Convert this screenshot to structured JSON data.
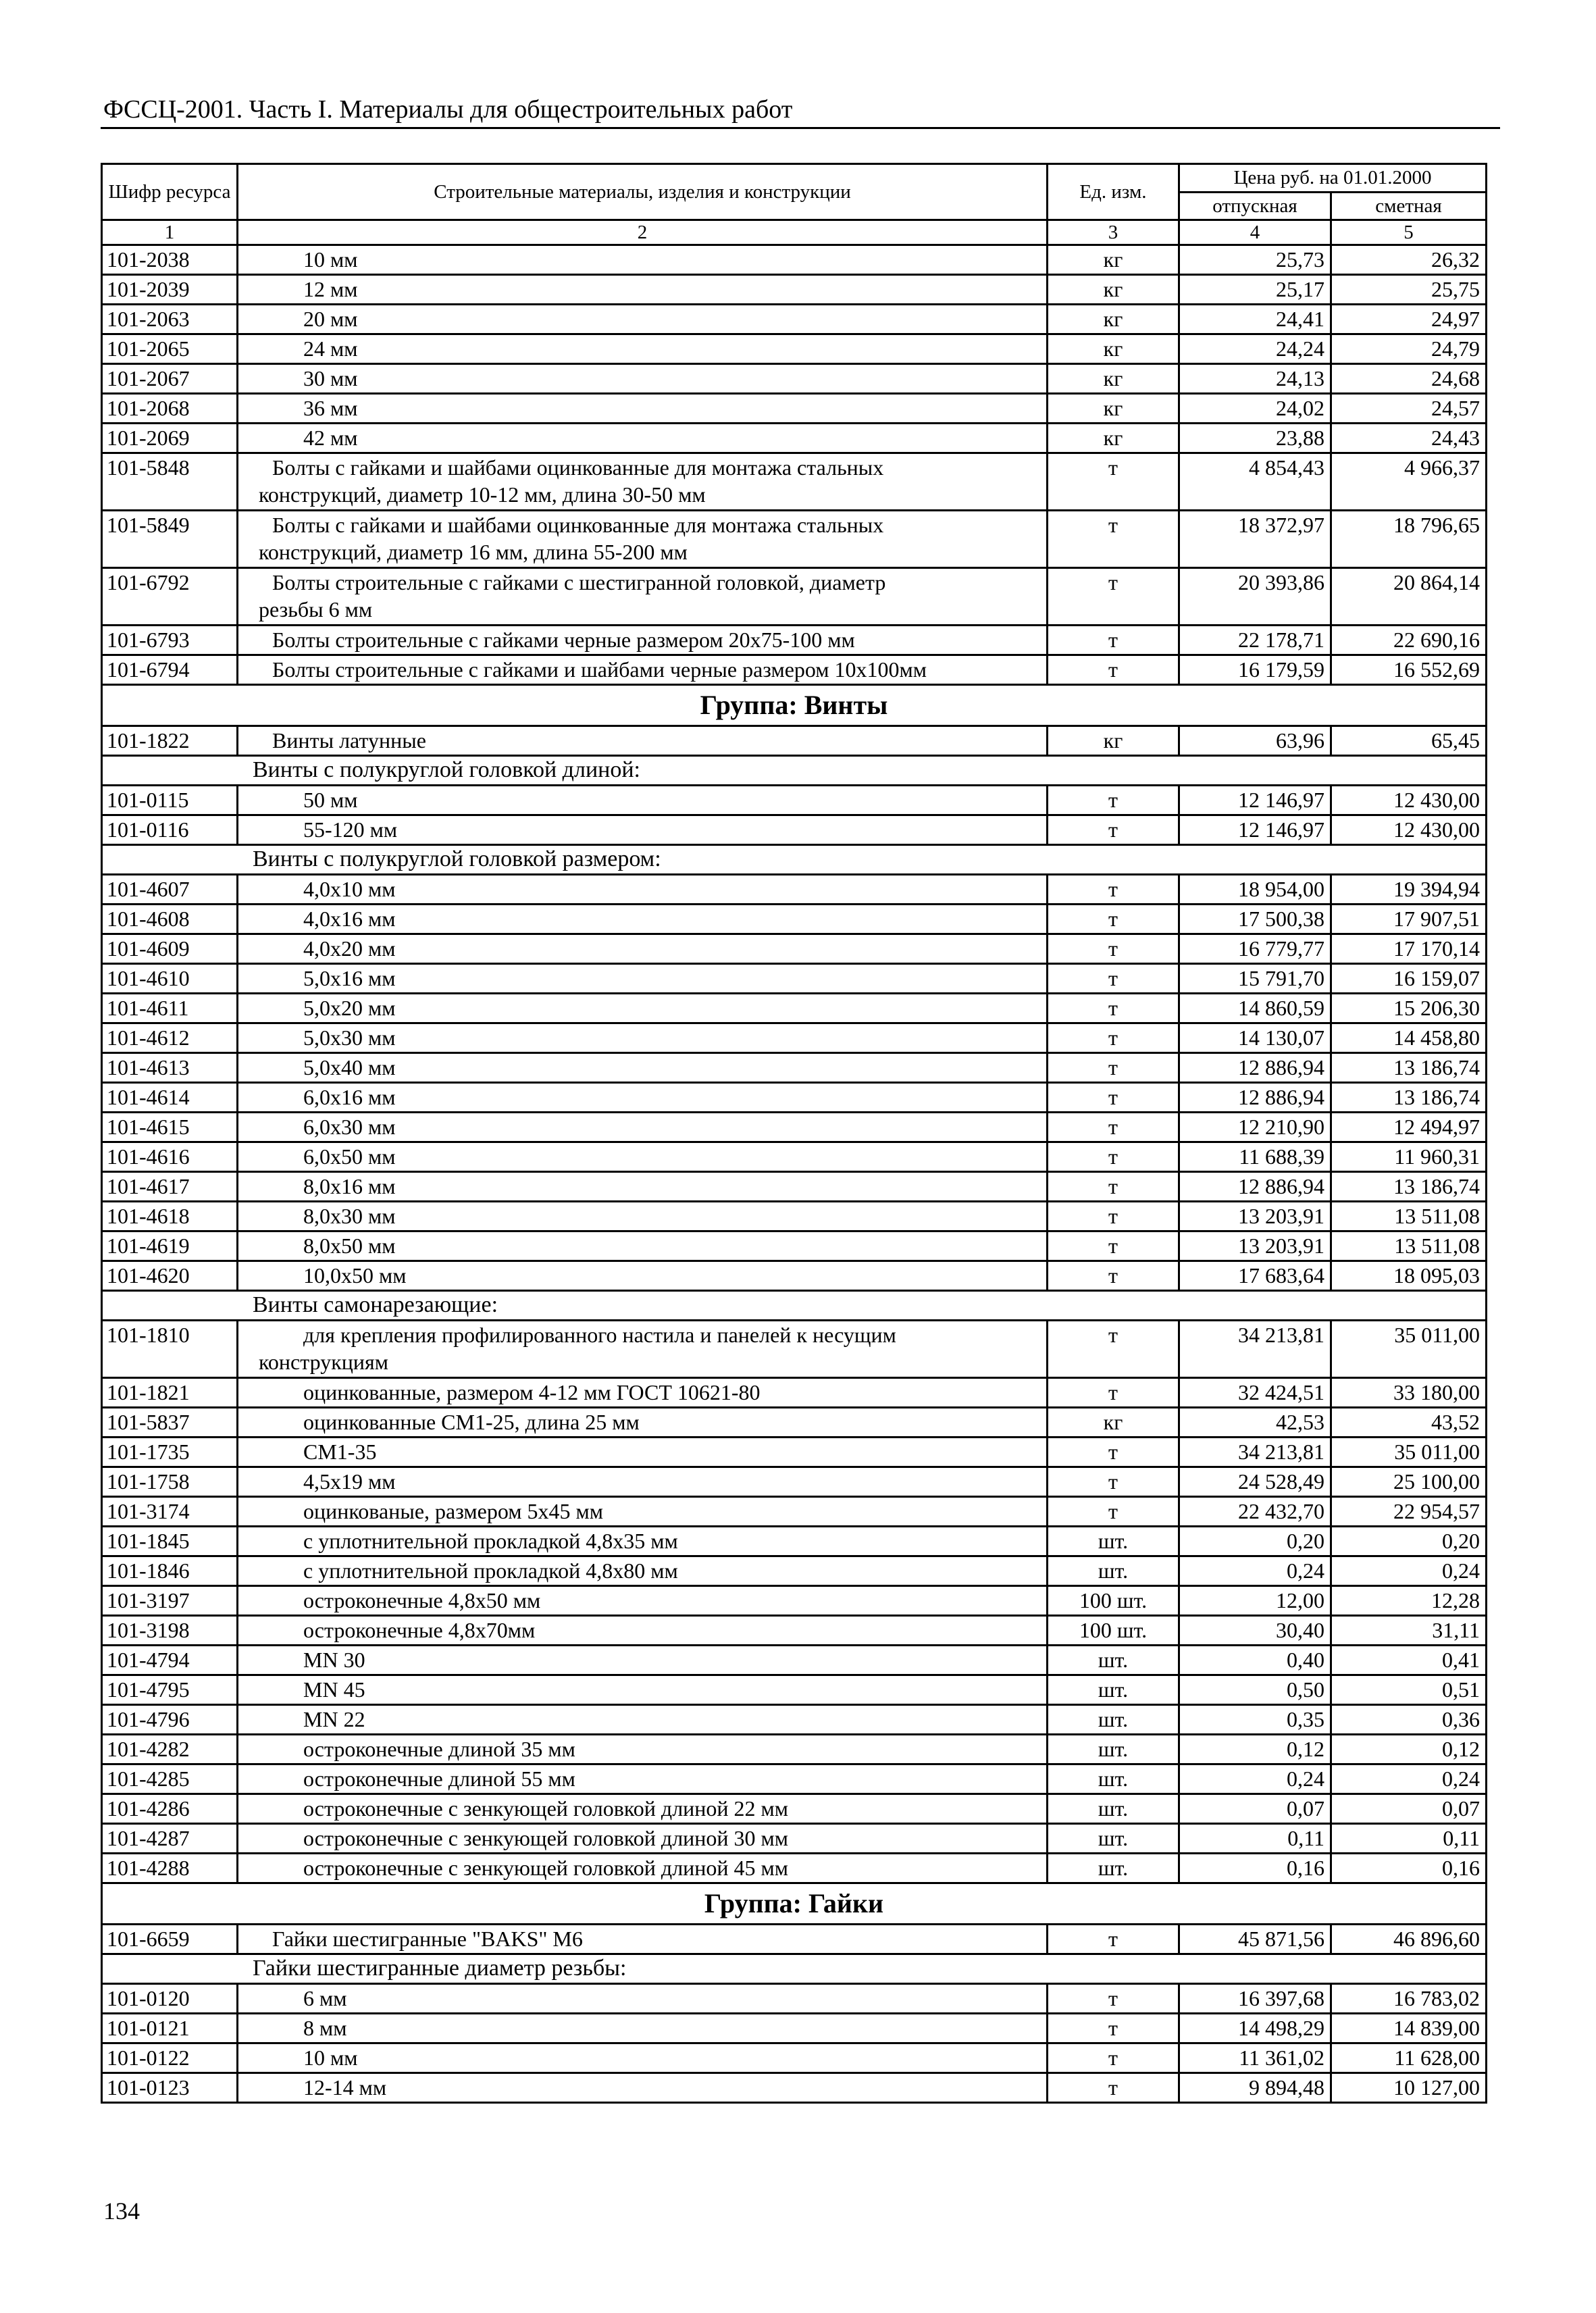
{
  "running_head": "ФССЦ-2001. Часть I. Материалы для общестроительных работ",
  "page_number": "134",
  "table": {
    "headers": {
      "code": "Шифр ресурса",
      "name": "Строительные материалы, изделия и конструкции",
      "unit": "Ед. изм.",
      "price_group": "Цена руб. на 01.01.2000",
      "price_release": "отпускная",
      "price_estimate": "сметная"
    },
    "column_numbers": [
      "1",
      "2",
      "3",
      "4",
      "5"
    ],
    "rows": [
      {
        "type": "item",
        "level": 2,
        "code": "101-2038",
        "name": "10 мм",
        "unit": "кг",
        "release": "25,73",
        "estimate": "26,32"
      },
      {
        "type": "item",
        "level": 2,
        "code": "101-2039",
        "name": "12 мм",
        "unit": "кг",
        "release": "25,17",
        "estimate": "25,75"
      },
      {
        "type": "item",
        "level": 2,
        "code": "101-2063",
        "name": "20 мм",
        "unit": "кг",
        "release": "24,41",
        "estimate": "24,97"
      },
      {
        "type": "item",
        "level": 2,
        "code": "101-2065",
        "name": "24 мм",
        "unit": "кг",
        "release": "24,24",
        "estimate": "24,79"
      },
      {
        "type": "item",
        "level": 2,
        "code": "101-2067",
        "name": "30 мм",
        "unit": "кг",
        "release": "24,13",
        "estimate": "24,68"
      },
      {
        "type": "item",
        "level": 2,
        "code": "101-2068",
        "name": "36 мм",
        "unit": "кг",
        "release": "24,02",
        "estimate": "24,57"
      },
      {
        "type": "item",
        "level": 2,
        "code": "101-2069",
        "name": "42 мм",
        "unit": "кг",
        "release": "23,88",
        "estimate": "24,43"
      },
      {
        "type": "item",
        "level": 1,
        "code": "101-5848",
        "name": "Болты с гайками и шайбами оцинкованные для монтажа стальных\nконструкций, диаметр 10-12 мм, длина 30-50 мм",
        "unit": "т",
        "release": "4 854,43",
        "estimate": "4 966,37"
      },
      {
        "type": "item",
        "level": 1,
        "code": "101-5849",
        "name": "Болты с гайками и шайбами оцинкованные для монтажа стальных\nконструкций, диаметр 16 мм, длина 55-200 мм",
        "unit": "т",
        "release": "18 372,97",
        "estimate": "18 796,65"
      },
      {
        "type": "item",
        "level": 1,
        "code": "101-6792",
        "name": "Болты строительные с гайками с шестигранной головкой, диаметр\nрезьбы 6 мм",
        "unit": "т",
        "release": "20 393,86",
        "estimate": "20 864,14"
      },
      {
        "type": "item",
        "level": 1,
        "code": "101-6793",
        "name": "Болты строительные с гайками черные размером 20х75-100 мм",
        "unit": "т",
        "release": "22 178,71",
        "estimate": "22 690,16"
      },
      {
        "type": "item",
        "level": 1,
        "code": "101-6794",
        "name": "Болты строительные с гайками и шайбами черные размером 10х100мм",
        "unit": "т",
        "release": "16 179,59",
        "estimate": "16 552,69"
      },
      {
        "type": "group",
        "title": "Группа: Винты"
      },
      {
        "type": "item",
        "level": 1,
        "code": "101-1822",
        "name": "Винты латунные",
        "unit": "кг",
        "release": "63,96",
        "estimate": "65,45"
      },
      {
        "type": "subheader",
        "title": "Винты с полукруглой головкой длиной:"
      },
      {
        "type": "item",
        "level": 2,
        "code": "101-0115",
        "name": "50 мм",
        "unit": "т",
        "release": "12 146,97",
        "estimate": "12 430,00"
      },
      {
        "type": "item",
        "level": 2,
        "code": "101-0116",
        "name": "55-120 мм",
        "unit": "т",
        "release": "12 146,97",
        "estimate": "12 430,00"
      },
      {
        "type": "subheader",
        "title": "Винты с полукруглой головкой размером:"
      },
      {
        "type": "item",
        "level": 2,
        "code": "101-4607",
        "name": "4,0х10 мм",
        "unit": "т",
        "release": "18 954,00",
        "estimate": "19 394,94"
      },
      {
        "type": "item",
        "level": 2,
        "code": "101-4608",
        "name": "4,0х16 мм",
        "unit": "т",
        "release": "17 500,38",
        "estimate": "17 907,51"
      },
      {
        "type": "item",
        "level": 2,
        "code": "101-4609",
        "name": "4,0х20 мм",
        "unit": "т",
        "release": "16 779,77",
        "estimate": "17 170,14"
      },
      {
        "type": "item",
        "level": 2,
        "code": "101-4610",
        "name": "5,0х16 мм",
        "unit": "т",
        "release": "15 791,70",
        "estimate": "16 159,07"
      },
      {
        "type": "item",
        "level": 2,
        "code": "101-4611",
        "name": "5,0х20 мм",
        "unit": "т",
        "release": "14 860,59",
        "estimate": "15 206,30"
      },
      {
        "type": "item",
        "level": 2,
        "code": "101-4612",
        "name": "5,0х30 мм",
        "unit": "т",
        "release": "14 130,07",
        "estimate": "14 458,80"
      },
      {
        "type": "item",
        "level": 2,
        "code": "101-4613",
        "name": "5,0х40 мм",
        "unit": "т",
        "release": "12 886,94",
        "estimate": "13 186,74"
      },
      {
        "type": "item",
        "level": 2,
        "code": "101-4614",
        "name": "6,0х16 мм",
        "unit": "т",
        "release": "12 886,94",
        "estimate": "13 186,74"
      },
      {
        "type": "item",
        "level": 2,
        "code": "101-4615",
        "name": "6,0х30 мм",
        "unit": "т",
        "release": "12 210,90",
        "estimate": "12 494,97"
      },
      {
        "type": "item",
        "level": 2,
        "code": "101-4616",
        "name": "6,0х50 мм",
        "unit": "т",
        "release": "11 688,39",
        "estimate": "11 960,31"
      },
      {
        "type": "item",
        "level": 2,
        "code": "101-4617",
        "name": "8,0х16 мм",
        "unit": "т",
        "release": "12 886,94",
        "estimate": "13 186,74"
      },
      {
        "type": "item",
        "level": 2,
        "code": "101-4618",
        "name": "8,0х30 мм",
        "unit": "т",
        "release": "13 203,91",
        "estimate": "13 511,08"
      },
      {
        "type": "item",
        "level": 2,
        "code": "101-4619",
        "name": "8,0х50 мм",
        "unit": "т",
        "release": "13 203,91",
        "estimate": "13 511,08"
      },
      {
        "type": "item",
        "level": 2,
        "code": "101-4620",
        "name": "10,0х50 мм",
        "unit": "т",
        "release": "17 683,64",
        "estimate": "18 095,03"
      },
      {
        "type": "subheader",
        "title": "Винты самонарезающие:"
      },
      {
        "type": "item",
        "level": 2,
        "code": "101-1810",
        "name": "для крепления профилированного настила и панелей к несущим\nконструкциям",
        "unit": "т",
        "release": "34 213,81",
        "estimate": "35 011,00"
      },
      {
        "type": "item",
        "level": 2,
        "code": "101-1821",
        "name": "оцинкованные, размером 4-12 мм ГОСТ 10621-80",
        "unit": "т",
        "release": "32 424,51",
        "estimate": "33 180,00"
      },
      {
        "type": "item",
        "level": 2,
        "code": "101-5837",
        "name": "оцинкованные СМ1-25, длина 25 мм",
        "unit": "кг",
        "release": "42,53",
        "estimate": "43,52"
      },
      {
        "type": "item",
        "level": 2,
        "code": "101-1735",
        "name": "СМ1-35",
        "unit": "т",
        "release": "34 213,81",
        "estimate": "35 011,00"
      },
      {
        "type": "item",
        "level": 2,
        "code": "101-1758",
        "name": "4,5х19 мм",
        "unit": "т",
        "release": "24 528,49",
        "estimate": "25 100,00"
      },
      {
        "type": "item",
        "level": 2,
        "code": "101-3174",
        "name": "оцинкованые, размером 5х45 мм",
        "unit": "т",
        "release": "22 432,70",
        "estimate": "22 954,57"
      },
      {
        "type": "item",
        "level": 2,
        "code": "101-1845",
        "name": "с уплотнительной прокладкой 4,8х35 мм",
        "unit": "шт.",
        "release": "0,20",
        "estimate": "0,20"
      },
      {
        "type": "item",
        "level": 2,
        "code": "101-1846",
        "name": "с уплотнительной прокладкой 4,8х80 мм",
        "unit": "шт.",
        "release": "0,24",
        "estimate": "0,24"
      },
      {
        "type": "item",
        "level": 2,
        "code": "101-3197",
        "name": "остроконечные 4,8х50 мм",
        "unit": "100 шт.",
        "release": "12,00",
        "estimate": "12,28"
      },
      {
        "type": "item",
        "level": 2,
        "code": "101-3198",
        "name": "остроконечные 4,8х70мм",
        "unit": "100 шт.",
        "release": "30,40",
        "estimate": "31,11"
      },
      {
        "type": "item",
        "level": 2,
        "code": "101-4794",
        "name": "MN 30",
        "unit": "шт.",
        "release": "0,40",
        "estimate": "0,41"
      },
      {
        "type": "item",
        "level": 2,
        "code": "101-4795",
        "name": "MN 45",
        "unit": "шт.",
        "release": "0,50",
        "estimate": "0,51"
      },
      {
        "type": "item",
        "level": 2,
        "code": "101-4796",
        "name": "MN 22",
        "unit": "шт.",
        "release": "0,35",
        "estimate": "0,36"
      },
      {
        "type": "item",
        "level": 2,
        "code": "101-4282",
        "name": "остроконечные длиной 35 мм",
        "unit": "шт.",
        "release": "0,12",
        "estimate": "0,12"
      },
      {
        "type": "item",
        "level": 2,
        "code": "101-4285",
        "name": "остроконечные длиной 55 мм",
        "unit": "шт.",
        "release": "0,24",
        "estimate": "0,24"
      },
      {
        "type": "item",
        "level": 2,
        "code": "101-4286",
        "name": "остроконечные с зенкующей головкой длиной 22 мм",
        "unit": "шт.",
        "release": "0,07",
        "estimate": "0,07"
      },
      {
        "type": "item",
        "level": 2,
        "code": "101-4287",
        "name": "остроконечные с зенкующей головкой длиной 30 мм",
        "unit": "шт.",
        "release": "0,11",
        "estimate": "0,11"
      },
      {
        "type": "item",
        "level": 2,
        "code": "101-4288",
        "name": "остроконечные с зенкующей головкой длиной 45 мм",
        "unit": "шт.",
        "release": "0,16",
        "estimate": "0,16"
      },
      {
        "type": "group",
        "title": "Группа: Гайки"
      },
      {
        "type": "item",
        "level": 1,
        "code": "101-6659",
        "name": "Гайки шестигранные \"BAKS\" М6",
        "unit": "т",
        "release": "45 871,56",
        "estimate": "46 896,60"
      },
      {
        "type": "subheader",
        "title": "Гайки шестигранные диаметр резьбы:"
      },
      {
        "type": "item",
        "level": 2,
        "code": "101-0120",
        "name": "6 мм",
        "unit": "т",
        "release": "16 397,68",
        "estimate": "16 783,02"
      },
      {
        "type": "item",
        "level": 2,
        "code": "101-0121",
        "name": "8 мм",
        "unit": "т",
        "release": "14 498,29",
        "estimate": "14 839,00"
      },
      {
        "type": "item",
        "level": 2,
        "code": "101-0122",
        "name": "10 мм",
        "unit": "т",
        "release": "11 361,02",
        "estimate": "11 628,00"
      },
      {
        "type": "item",
        "level": 2,
        "code": "101-0123",
        "name": "12-14 мм",
        "unit": "т",
        "release": "9 894,48",
        "estimate": "10 127,00"
      }
    ]
  }
}
